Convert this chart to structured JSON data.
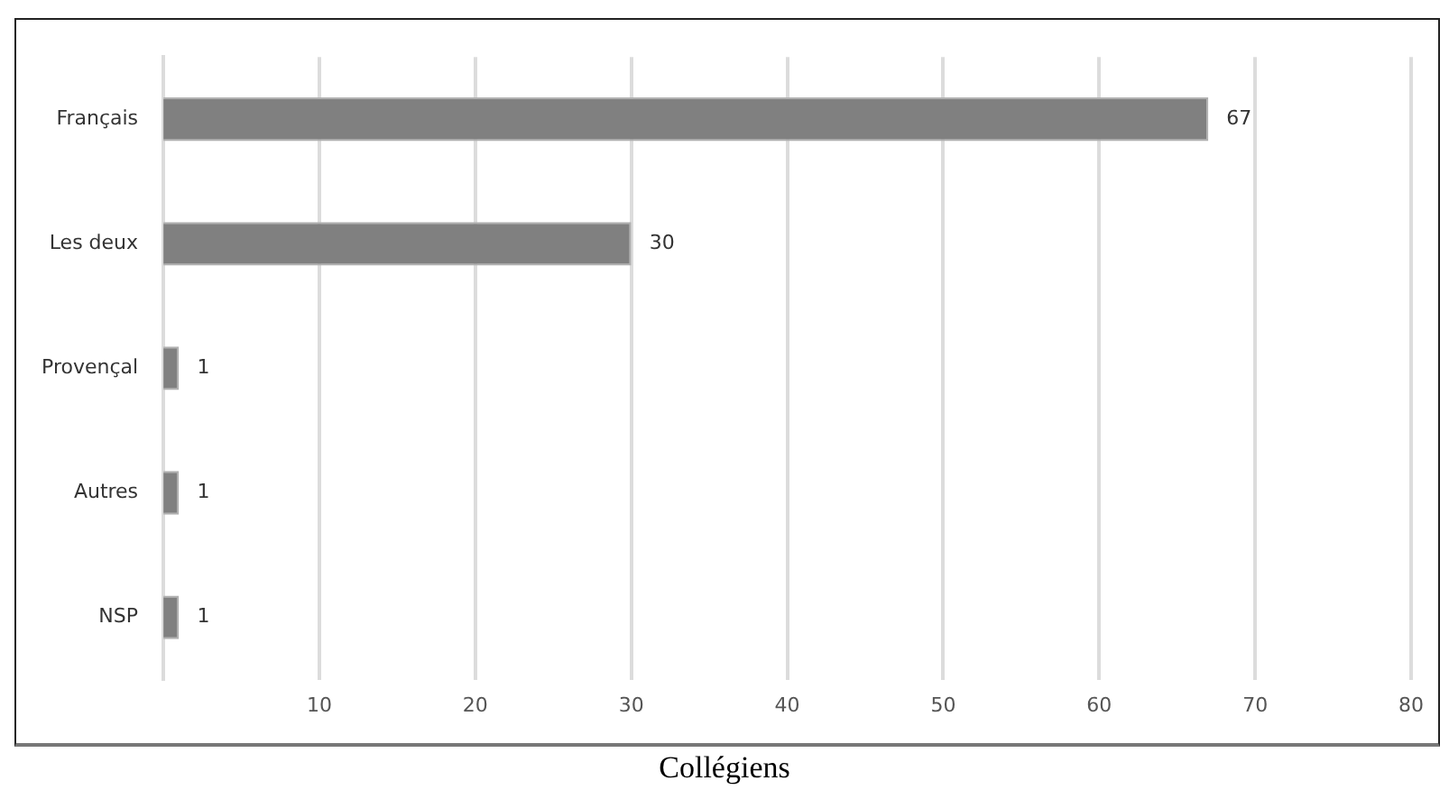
{
  "chart_data": {
    "type": "bar",
    "orientation": "horizontal",
    "title": "Collégiens",
    "categories": [
      "Français",
      "Les deux",
      "Provençal",
      "Autres",
      "NSP"
    ],
    "values": [
      67,
      30,
      1,
      1,
      1
    ],
    "color": "#808080",
    "xlim": [
      0,
      80
    ],
    "xticks": [
      10,
      20,
      30,
      40,
      50,
      60,
      70,
      80
    ],
    "grid": "x",
    "data_labels": true,
    "legend": false
  }
}
